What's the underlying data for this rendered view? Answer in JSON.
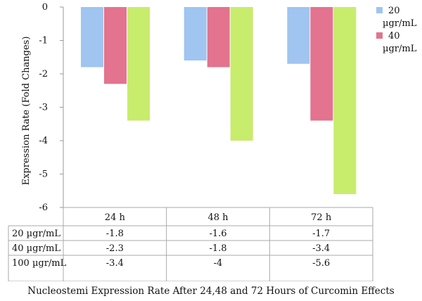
{
  "chart_data": {
    "type": "bar",
    "categories": [
      "24 h",
      "48 h",
      "72 h"
    ],
    "series": [
      {
        "name": "20 µgr/mL",
        "values": [
          -1.8,
          -1.6,
          -1.7
        ],
        "color": "#9fc5f0"
      },
      {
        "name": "40 µgr/mL",
        "values": [
          -2.3,
          -1.8,
          -3.4
        ],
        "color": "#e3738e"
      },
      {
        "name": "100 µgr/mL",
        "values": [
          -3.4,
          -4,
          -5.6
        ],
        "color": "#c8ec6c"
      }
    ],
    "legend": [
      {
        "line1": "20",
        "line2": "µgr/mL",
        "color": "#9fc5f0"
      },
      {
        "line1": "40",
        "line2": "µgr/mL",
        "color": "#e3738e"
      }
    ],
    "table_rows": [
      {
        "label": "20 µgr/mL",
        "cells": [
          "-1.8",
          "-1.6",
          "-1.7"
        ]
      },
      {
        "label": "40 µgr/mL",
        "cells": [
          "-2.3",
          "-1.8",
          "-3.4"
        ]
      },
      {
        "label": "100 µgr/mL",
        "cells": [
          "-3.4",
          "-4",
          "-5.6"
        ]
      }
    ],
    "ylabel": "Expression Rate (Fold Changes)",
    "yticks": [
      "0",
      "-1",
      "-2",
      "-3",
      "-4",
      "-5",
      "-6"
    ],
    "ylim": [
      -6,
      0
    ],
    "grid": false,
    "legend_position": "right",
    "title": "Nucleostemi Expression Rate After 24,48 and 72 Hours of Curcomin Effects"
  }
}
